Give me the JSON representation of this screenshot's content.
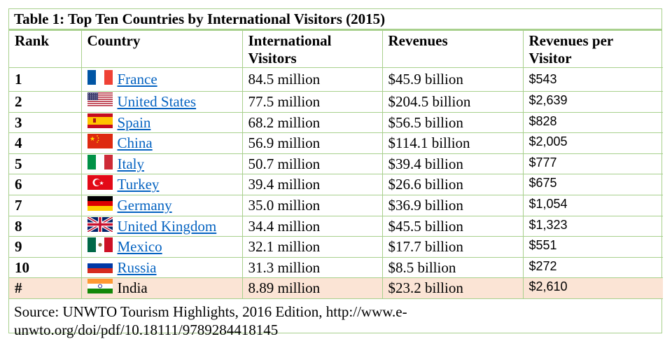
{
  "title": "Table 1: Top Ten Countries by International Visitors (2015)",
  "headers": {
    "rank": "Rank",
    "country": "Country",
    "visitors": "International Visitors",
    "revenues": "Revenues",
    "rev_per_visitor": "Revenues per Visitor"
  },
  "rows": [
    {
      "rank": "1",
      "country": "France",
      "visitors": "84.5 million",
      "revenues": "$45.9 billion",
      "rev_per_visitor": "$543",
      "flag": "france-flag-icon",
      "link": true
    },
    {
      "rank": "2",
      "country": "United States",
      "visitors": "77.5 million",
      "revenues": "$204.5 billion",
      "rev_per_visitor": "$2,639",
      "flag": "usa-flag-icon",
      "link": true
    },
    {
      "rank": "3",
      "country": "Spain",
      "visitors": "68.2 million",
      "revenues": "$56.5 billion",
      "rev_per_visitor": "$828",
      "flag": "spain-flag-icon",
      "link": true
    },
    {
      "rank": "4",
      "country": "China",
      "visitors": "56.9 million",
      "revenues": "$114.1 billion",
      "rev_per_visitor": "$2,005",
      "flag": "china-flag-icon",
      "link": true
    },
    {
      "rank": "5",
      "country": "Italy",
      "visitors": "50.7 million",
      "revenues": "$39.4 billion",
      "rev_per_visitor": "$777",
      "flag": "italy-flag-icon",
      "link": true
    },
    {
      "rank": "6",
      "country": "Turkey",
      "visitors": "39.4 million",
      "revenues": "$26.6 billion",
      "rev_per_visitor": "$675",
      "flag": "turkey-flag-icon",
      "link": true
    },
    {
      "rank": "7",
      "country": "Germany",
      "visitors": "35.0 million",
      "revenues": "$36.9 billion",
      "rev_per_visitor": "$1,054",
      "flag": "germany-flag-icon",
      "link": true
    },
    {
      "rank": "8",
      "country": "United Kingdom",
      "visitors": "34.4 million",
      "revenues": "$45.5 billion",
      "rev_per_visitor": "$1,323",
      "flag": "uk-flag-icon",
      "link": true
    },
    {
      "rank": "9",
      "country": "Mexico",
      "visitors": "32.1 million",
      "revenues": "$17.7 billion",
      "rev_per_visitor": "$551",
      "flag": "mexico-flag-icon",
      "link": true
    },
    {
      "rank": "10",
      "country": "Russia",
      "visitors": "31.3 million",
      "revenues": "$8.5 billion",
      "rev_per_visitor": "$272",
      "flag": "russia-flag-icon",
      "link": true
    },
    {
      "rank": "#",
      "country": "India",
      "visitors": "8.89 million",
      "revenues": "$23.2 billion",
      "rev_per_visitor": "$2,610",
      "flag": "india-flag-icon",
      "link": false,
      "highlight": true
    }
  ],
  "source": "Source: UNWTO Tourism Highlights, 2016 Edition, http://www.e-\nunwto.org/doi/pdf/10.18111/9789284418145",
  "colors": {
    "border": "#a8d08d",
    "highlight_row": "#fbe4d5",
    "link": "#0563c1"
  }
}
